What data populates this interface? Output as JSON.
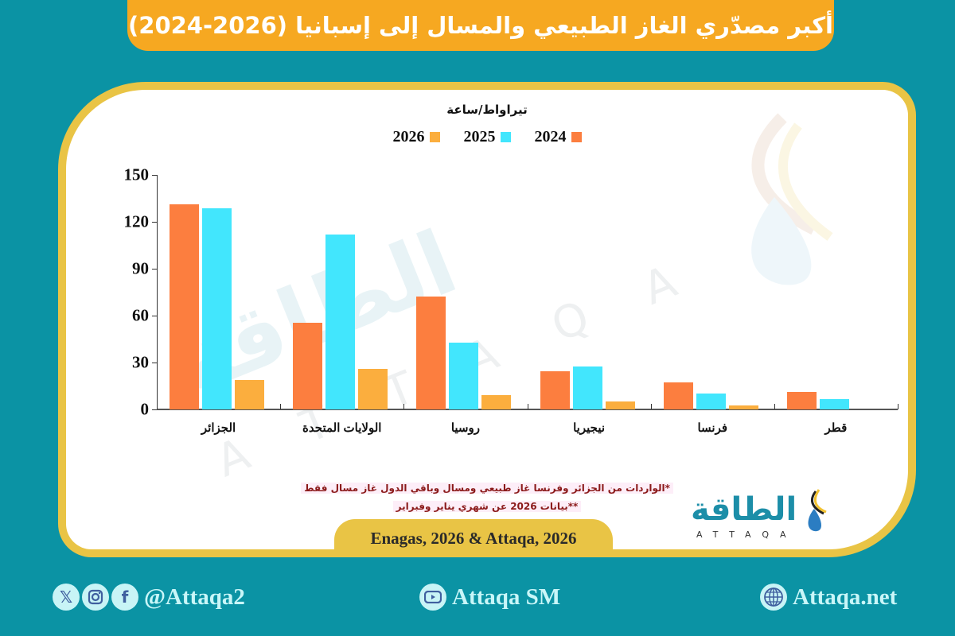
{
  "title": "أكبر مصدّري الغاز الطبيعي والمسال إلى إسبانيا (2026-2024)",
  "colors": {
    "background": "#0b93a4",
    "title_banner": "#f6a821",
    "card_border": "#e9c445",
    "series_2024": "#fc7e3f",
    "series_2025": "#42e6fd",
    "series_2026": "#fbae3e",
    "note_text": "#8b1a1a"
  },
  "chart_data": {
    "type": "bar",
    "title": "أكبر مصدّري الغاز الطبيعي والمسال إلى إسبانيا (2026-2024)",
    "ylabel": "تيراواط/ساعة",
    "xlabel": "",
    "ylim": [
      0,
      150
    ],
    "yticks": [
      0,
      30,
      60,
      90,
      120,
      150
    ],
    "grid": false,
    "legend_position": "top",
    "categories": [
      "الجزائر",
      "الولايات المتحدة",
      "روسيا",
      "نيجيريا",
      "فرنسا",
      "قطر"
    ],
    "series": [
      {
        "name": "2024",
        "color": "#fc7e3f",
        "values": [
          131,
          55.5,
          72,
          24.5,
          17.5,
          11
        ]
      },
      {
        "name": "2025",
        "color": "#42e6fd",
        "values": [
          128.5,
          112,
          42.5,
          27.5,
          10,
          6.5
        ]
      },
      {
        "name": "2026",
        "color": "#fbae3e",
        "values": [
          19,
          26,
          9,
          5,
          2.5,
          0
        ]
      }
    ]
  },
  "legend": [
    {
      "label": "2024",
      "color": "#fc7e3f"
    },
    {
      "label": "2025",
      "color": "#42e6fd"
    },
    {
      "label": "2026",
      "color": "#fbae3e"
    }
  ],
  "notes": [
    "*الواردات من الجزائر وفرنسا غاز طبيعي ومسال وباقي الدول غاز مسال فقط",
    "**بيانات 2026 عن شهري يناير وفبراير"
  ],
  "source": "Enagas, 2026 & Attaqa, 2026",
  "logo": {
    "arabic": "الطاقة",
    "latin": "ATTAQA"
  },
  "watermark": {
    "arabic": "الطاقة",
    "latin": "ATTAQA"
  },
  "footer": {
    "social_handle": "@Attaqa2",
    "youtube": "Attaqa SM",
    "website": "Attaqa.net",
    "icons": [
      "x-icon",
      "instagram-icon",
      "facebook-icon",
      "youtube-icon",
      "globe-icon"
    ]
  }
}
